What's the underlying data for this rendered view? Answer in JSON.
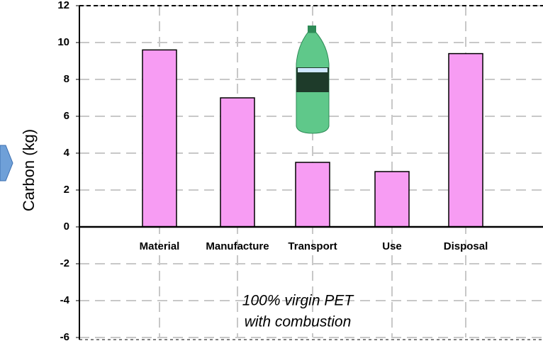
{
  "chart_data": {
    "type": "bar",
    "y_label": "Carbon (kg)",
    "categories": [
      "Material",
      "Manufacture",
      "Transport",
      "Use",
      "Disposal"
    ],
    "values": [
      9.6,
      7.0,
      3.5,
      3.0,
      9.4
    ],
    "color": "#f79cf3",
    "ylim": [
      -6,
      12
    ],
    "yticks": [
      -6,
      -4,
      -2,
      0,
      2,
      4,
      6,
      8,
      10,
      12
    ],
    "grid": true,
    "annotation": [
      "100% virgin PET",
      "with combustion"
    ]
  }
}
